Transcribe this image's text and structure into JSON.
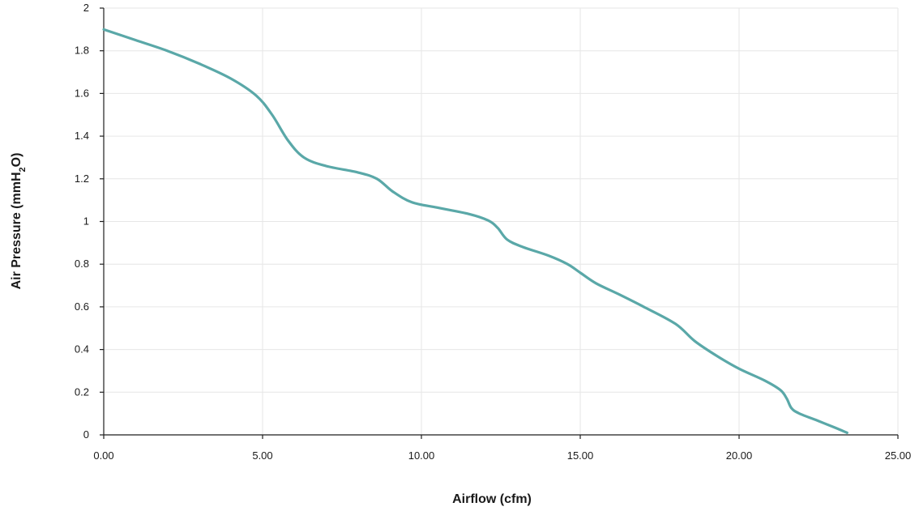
{
  "chart_data": {
    "type": "line",
    "xlabel": "Airflow (cfm)",
    "ylabel": "Air Pressure (mmH2O)",
    "ylabel_parts": {
      "prefix": "Air Pressure (mmH",
      "subscript": "2",
      "suffix": "O)"
    },
    "xlim": [
      0,
      25
    ],
    "ylim": [
      0,
      2
    ],
    "grid": true,
    "x_ticks": [
      {
        "value": 0,
        "label": "0.00"
      },
      {
        "value": 5,
        "label": "5.00"
      },
      {
        "value": 10,
        "label": "10.00"
      },
      {
        "value": 15,
        "label": "15.00"
      },
      {
        "value": 20,
        "label": "20.00"
      },
      {
        "value": 25,
        "label": "25.00"
      }
    ],
    "y_ticks": [
      {
        "value": 0,
        "label": "0"
      },
      {
        "value": 0.2,
        "label": "0.2"
      },
      {
        "value": 0.4,
        "label": "0.4"
      },
      {
        "value": 0.6,
        "label": "0.6"
      },
      {
        "value": 0.8,
        "label": "0.8"
      },
      {
        "value": 1.0,
        "label": "1"
      },
      {
        "value": 1.2,
        "label": "1.2"
      },
      {
        "value": 1.4,
        "label": "1.4"
      },
      {
        "value": 1.6,
        "label": "1.6"
      },
      {
        "value": 1.8,
        "label": "1.8"
      },
      {
        "value": 2.0,
        "label": "2"
      }
    ],
    "series": [
      {
        "color": "#5aa8a8",
        "points": [
          {
            "x": 0.0,
            "y": 1.9
          },
          {
            "x": 1.0,
            "y": 1.85
          },
          {
            "x": 2.0,
            "y": 1.8
          },
          {
            "x": 3.0,
            "y": 1.74
          },
          {
            "x": 4.0,
            "y": 1.67
          },
          {
            "x": 4.8,
            "y": 1.59
          },
          {
            "x": 5.3,
            "y": 1.5
          },
          {
            "x": 5.8,
            "y": 1.38
          },
          {
            "x": 6.3,
            "y": 1.3
          },
          {
            "x": 7.0,
            "y": 1.26
          },
          {
            "x": 8.0,
            "y": 1.23
          },
          {
            "x": 8.6,
            "y": 1.2
          },
          {
            "x": 9.1,
            "y": 1.14
          },
          {
            "x": 9.7,
            "y": 1.09
          },
          {
            "x": 10.5,
            "y": 1.065
          },
          {
            "x": 11.5,
            "y": 1.035
          },
          {
            "x": 12.1,
            "y": 1.005
          },
          {
            "x": 12.4,
            "y": 0.97
          },
          {
            "x": 12.7,
            "y": 0.915
          },
          {
            "x": 13.2,
            "y": 0.88
          },
          {
            "x": 14.0,
            "y": 0.84
          },
          {
            "x": 14.6,
            "y": 0.8
          },
          {
            "x": 15.0,
            "y": 0.76
          },
          {
            "x": 15.5,
            "y": 0.71
          },
          {
            "x": 16.2,
            "y": 0.66
          },
          {
            "x": 17.0,
            "y": 0.6
          },
          {
            "x": 18.0,
            "y": 0.52
          },
          {
            "x": 18.6,
            "y": 0.44
          },
          {
            "x": 19.3,
            "y": 0.37
          },
          {
            "x": 20.0,
            "y": 0.31
          },
          {
            "x": 20.8,
            "y": 0.255
          },
          {
            "x": 21.3,
            "y": 0.21
          },
          {
            "x": 21.5,
            "y": 0.17
          },
          {
            "x": 21.65,
            "y": 0.125
          },
          {
            "x": 21.9,
            "y": 0.1
          },
          {
            "x": 22.5,
            "y": 0.065
          },
          {
            "x": 23.0,
            "y": 0.035
          },
          {
            "x": 23.4,
            "y": 0.01
          }
        ]
      }
    ]
  }
}
